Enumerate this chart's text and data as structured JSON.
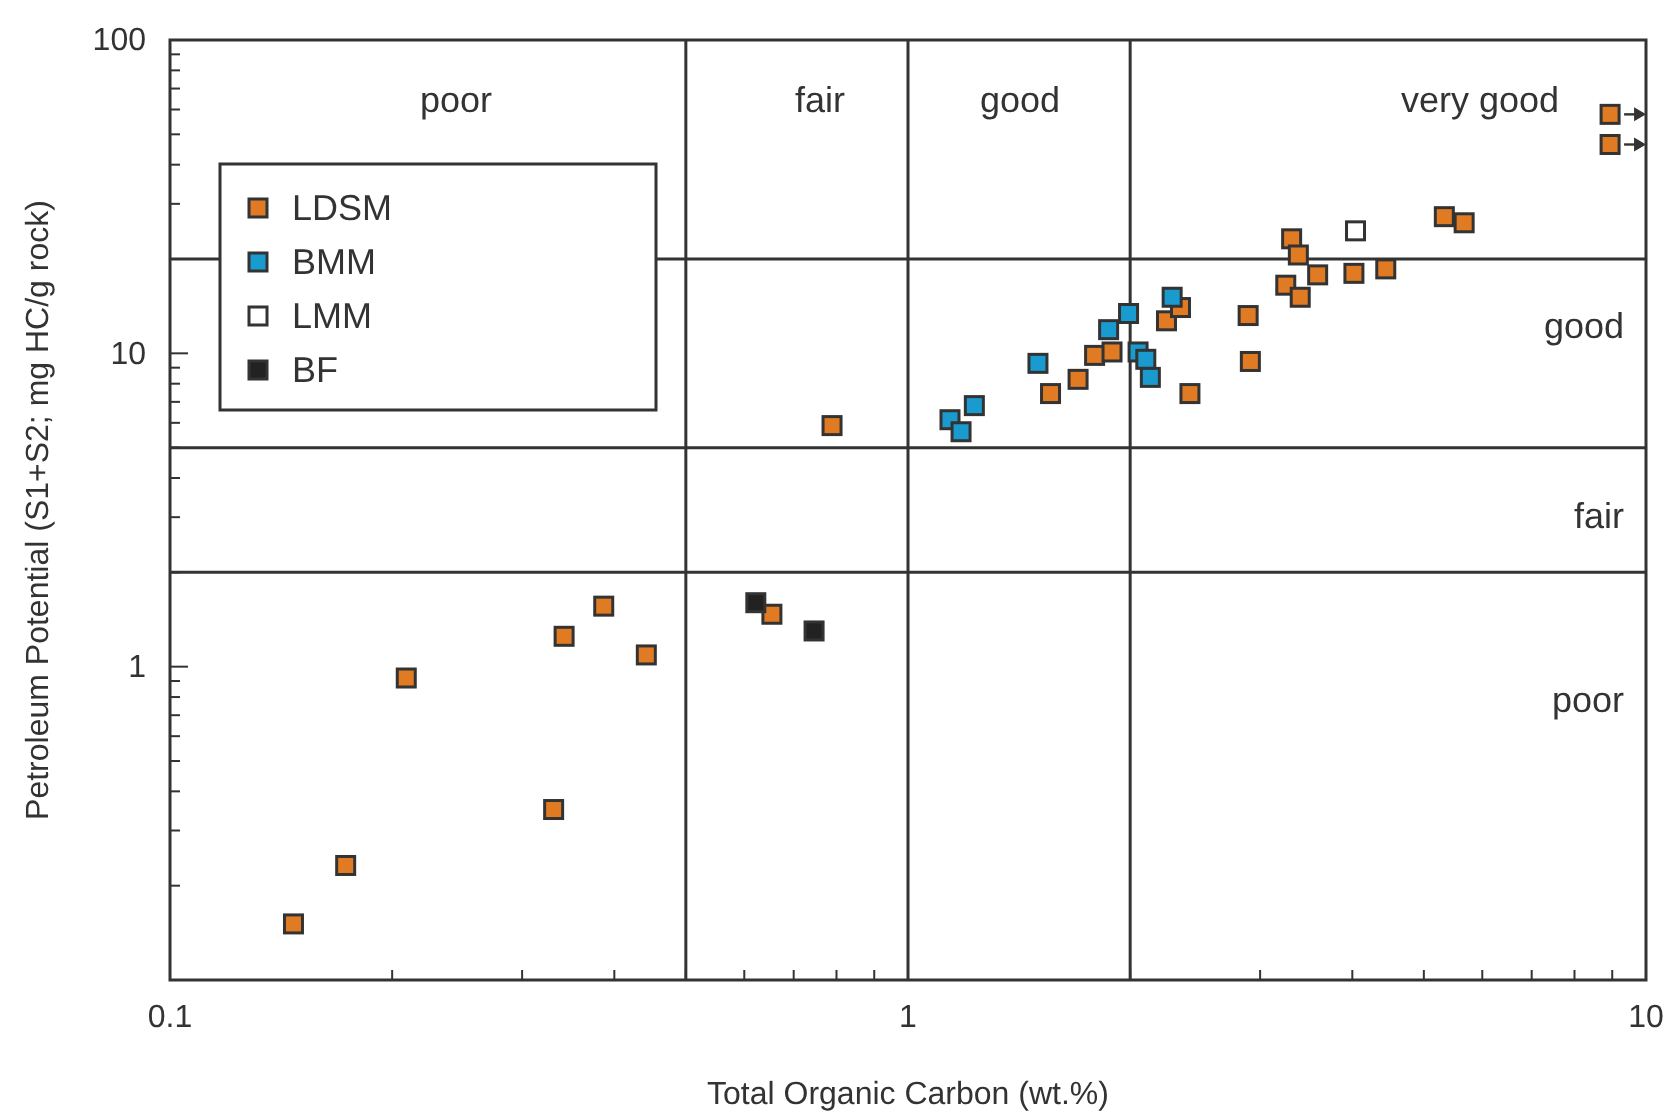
{
  "chart_data": {
    "type": "scatter",
    "xlabel": "Total Organic Carbon (wt.%)",
    "ylabel": "Petroleum Potential (S1+S2; mg HC/g rock)",
    "log": "xy",
    "marker": "square",
    "legend": "top left",
    "grid": false,
    "xlim": [
      0.1,
      10
    ],
    "ylim": [
      0.1,
      100
    ],
    "xticks": [
      0.1,
      {
        "value": 0.2,
        "label": null
      },
      {
        "value": 0.3,
        "label": null
      },
      {
        "value": 0.4,
        "label": null
      },
      {
        "value": 0.5,
        "label": null
      },
      {
        "value": 0.6,
        "label": null
      },
      {
        "value": 0.7,
        "label": null
      },
      {
        "value": 0.8,
        "label": null
      },
      {
        "value": 0.9,
        "label": null
      },
      1,
      {
        "value": 2,
        "label": null
      },
      {
        "value": 3,
        "label": null
      },
      {
        "value": 4,
        "label": null
      },
      {
        "value": 5,
        "label": null
      },
      {
        "value": 6,
        "label": null
      },
      {
        "value": 7,
        "label": null
      },
      {
        "value": 8,
        "label": null
      },
      {
        "value": 9,
        "label": null
      },
      10
    ],
    "yticks": [
      {
        "value": 0.1,
        "label": null
      },
      {
        "value": 0.2,
        "label": null
      },
      {
        "value": 0.3,
        "label": null
      },
      {
        "value": 0.4,
        "label": null
      },
      {
        "value": 0.5,
        "label": null
      },
      {
        "value": 0.6,
        "label": null
      },
      {
        "value": 0.7,
        "label": null
      },
      {
        "value": 0.8,
        "label": null
      },
      {
        "value": 0.9,
        "label": null
      },
      1,
      {
        "value": 2,
        "label": null
      },
      {
        "value": 3,
        "label": null
      },
      {
        "value": 4,
        "label": null
      },
      {
        "value": 5,
        "label": null
      },
      {
        "value": 6,
        "label": null
      },
      {
        "value": 7,
        "label": null
      },
      {
        "value": 8,
        "label": null
      },
      {
        "value": 9,
        "label": null
      },
      10,
      {
        "value": 20,
        "label": null
      },
      {
        "value": 30,
        "label": null
      },
      {
        "value": 40,
        "label": null
      },
      {
        "value": 50,
        "label": null
      },
      {
        "value": 60,
        "label": null
      },
      {
        "value": 70,
        "label": null
      },
      {
        "value": 80,
        "label": null
      },
      {
        "value": 90,
        "label": null
      },
      100
    ],
    "series": [
      {
        "name": "LDSM",
        "color": "#e07b24",
        "x": [
          0.147,
          0.173,
          0.209,
          0.331,
          0.342,
          0.387,
          0.442,
          0.654,
          0.789,
          1.56,
          1.7,
          1.79,
          1.89,
          2.24,
          2.34,
          2.41,
          2.89,
          2.91,
          3.25,
          3.31,
          3.38,
          3.4,
          3.59,
          4.02,
          4.44,
          5.33,
          5.67,
          8.94,
          8.94
        ],
        "values": [
          0.151,
          0.232,
          0.92,
          0.35,
          1.25,
          1.56,
          1.09,
          1.47,
          5.88,
          7.44,
          8.26,
          9.85,
          10.1,
          12.7,
          14.0,
          7.44,
          13.2,
          9.42,
          16.5,
          23.2,
          20.6,
          15.1,
          17.8,
          18.0,
          18.6,
          27.3,
          26.1,
          57.9,
          46.4
        ]
      },
      {
        "name": "BMM",
        "color": "#1a9bd0",
        "x": [
          1.14,
          1.18,
          1.23,
          1.5,
          1.87,
          1.99,
          2.05,
          2.1,
          2.13,
          2.28
        ],
        "values": [
          6.14,
          5.62,
          6.81,
          9.29,
          11.9,
          13.4,
          10.1,
          9.57,
          8.38,
          15.1
        ]
      },
      {
        "name": "LMM",
        "color": "#ffffff",
        "x": [
          4.04
        ],
        "values": [
          24.6
        ]
      },
      {
        "name": "BF",
        "color": "#222222",
        "x": [
          0.622,
          0.746
        ],
        "values": [
          1.6,
          1.3
        ]
      }
    ],
    "ref_lines": [
      {
        "axis": "x",
        "value": 0.5
      },
      {
        "axis": "x",
        "value": 1
      },
      {
        "axis": "x",
        "value": 2
      },
      {
        "axis": "y",
        "value": 2
      },
      {
        "axis": "y",
        "value": 5
      },
      {
        "axis": "y",
        "value": 20
      }
    ],
    "annotations": [
      "poor",
      "fair",
      "good",
      "very good",
      "good",
      "fair",
      "poor"
    ]
  }
}
